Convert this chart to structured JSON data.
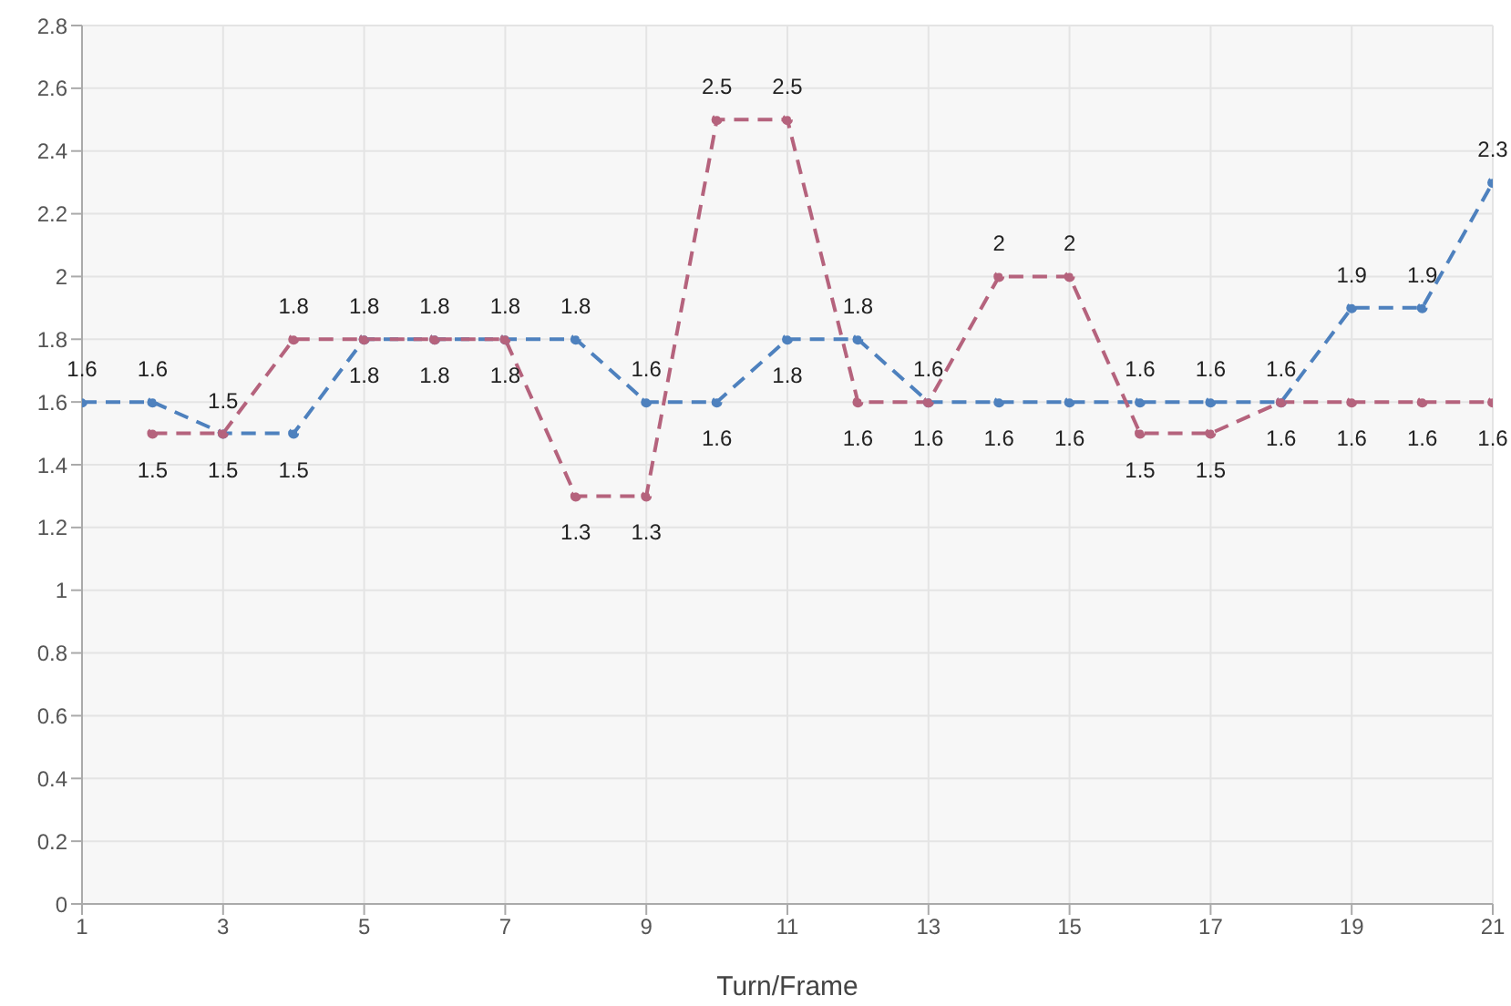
{
  "chart_data": {
    "type": "line",
    "xlabel": "Turn/Frame",
    "x": [
      1,
      2,
      3,
      4,
      5,
      6,
      7,
      8,
      9,
      10,
      11,
      12,
      13,
      14,
      15,
      16,
      17,
      18,
      19,
      20,
      21
    ],
    "series": [
      {
        "color": "#4e81be",
        "values": [
          1.6,
          1.6,
          1.5,
          1.5,
          1.8,
          1.8,
          1.8,
          1.8,
          1.6,
          1.6,
          1.8,
          1.8,
          1.6,
          1.6,
          1.6,
          1.6,
          1.6,
          1.6,
          1.9,
          1.9,
          2.3
        ]
      },
      {
        "color": "#b5637d",
        "values": [
          null,
          1.5,
          1.5,
          1.8,
          1.8,
          1.8,
          1.8,
          1.3,
          1.3,
          2.5,
          2.5,
          1.6,
          1.6,
          2,
          2,
          1.5,
          1.5,
          1.6,
          1.6,
          1.6,
          1.6
        ]
      }
    ],
    "xlim": [
      1,
      21
    ],
    "xticks": [
      1,
      3,
      5,
      7,
      9,
      11,
      13,
      15,
      17,
      19,
      21
    ],
    "ylim": [
      0,
      2.8
    ],
    "yticks": [
      0,
      0.2,
      0.4,
      0.6,
      0.8,
      1,
      1.2,
      1.4,
      1.6,
      1.8,
      2,
      2.2,
      2.4,
      2.6,
      2.8
    ],
    "grid": true,
    "marker": "circle",
    "line_style": "dashed",
    "data_labels": true,
    "legend": false
  }
}
